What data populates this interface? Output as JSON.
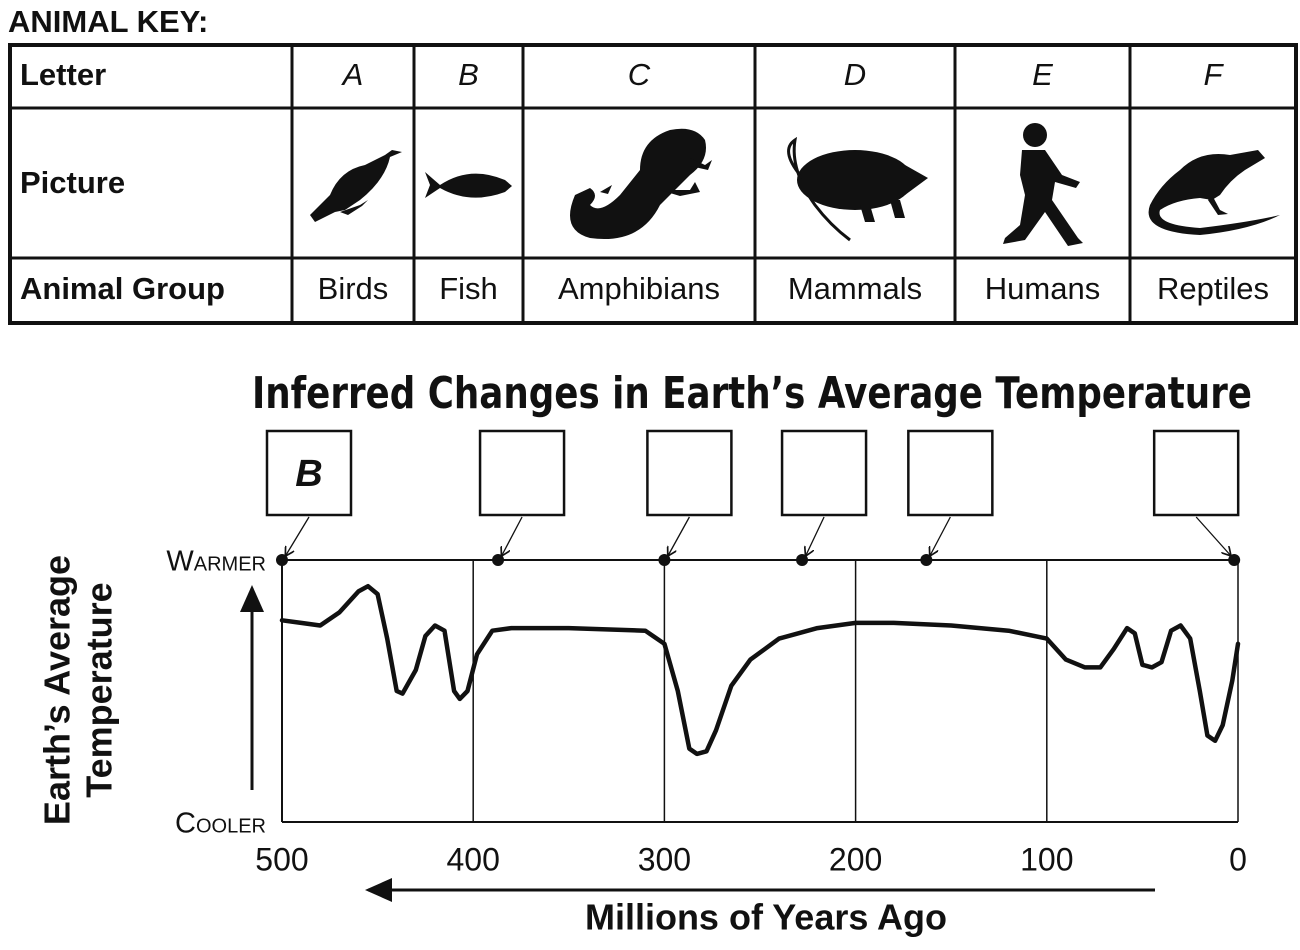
{
  "animal_key": {
    "title": "ANIMAL KEY:",
    "row_headers": [
      "Letter",
      "Picture",
      "Animal Group"
    ],
    "letters": [
      "A",
      "B",
      "C",
      "D",
      "E",
      "F"
    ],
    "groups": [
      "Birds",
      "Fish",
      "Amphibians",
      "Mammals",
      "Humans",
      "Reptiles"
    ]
  },
  "chart_data": {
    "type": "line",
    "title": "Inferred Changes in Earth’s Average Temperature",
    "xlabel": "Millions of Years Ago",
    "ylabel": [
      "Earth’s Average",
      "Temperature"
    ],
    "x": [
      500,
      490,
      480,
      470,
      460,
      455,
      450,
      445,
      440,
      437,
      430,
      425,
      420,
      415,
      410,
      407,
      403,
      398,
      390,
      380,
      350,
      310,
      300,
      293,
      287,
      283,
      278,
      273,
      265,
      255,
      240,
      220,
      200,
      180,
      150,
      120,
      100,
      90,
      80,
      72,
      65,
      58,
      54,
      50,
      45,
      40,
      35,
      30,
      25,
      20,
      16,
      12,
      8,
      3,
      0
    ],
    "values": [
      0.77,
      0.76,
      0.75,
      0.8,
      0.88,
      0.9,
      0.87,
      0.7,
      0.5,
      0.49,
      0.58,
      0.71,
      0.75,
      0.73,
      0.5,
      0.47,
      0.5,
      0.64,
      0.73,
      0.74,
      0.74,
      0.73,
      0.68,
      0.5,
      0.28,
      0.26,
      0.27,
      0.35,
      0.52,
      0.62,
      0.7,
      0.74,
      0.76,
      0.76,
      0.75,
      0.73,
      0.7,
      0.62,
      0.59,
      0.59,
      0.66,
      0.74,
      0.72,
      0.6,
      0.59,
      0.61,
      0.73,
      0.75,
      0.7,
      0.5,
      0.33,
      0.31,
      0.37,
      0.54,
      0.68
    ],
    "color": "#111111",
    "xlim": [
      500,
      0
    ],
    "xticks": [
      500,
      400,
      300,
      200,
      100,
      0
    ],
    "ylim": [
      0,
      1
    ],
    "yticks": [
      {
        "value": 0,
        "label": "Cooler"
      },
      {
        "value": 1,
        "label": "Warmer"
      }
    ],
    "grid": true,
    "markers": {
      "x": [
        500,
        387,
        300,
        228,
        163,
        2
      ],
      "labels": [
        "B",
        null,
        null,
        null,
        null,
        null
      ]
    }
  }
}
